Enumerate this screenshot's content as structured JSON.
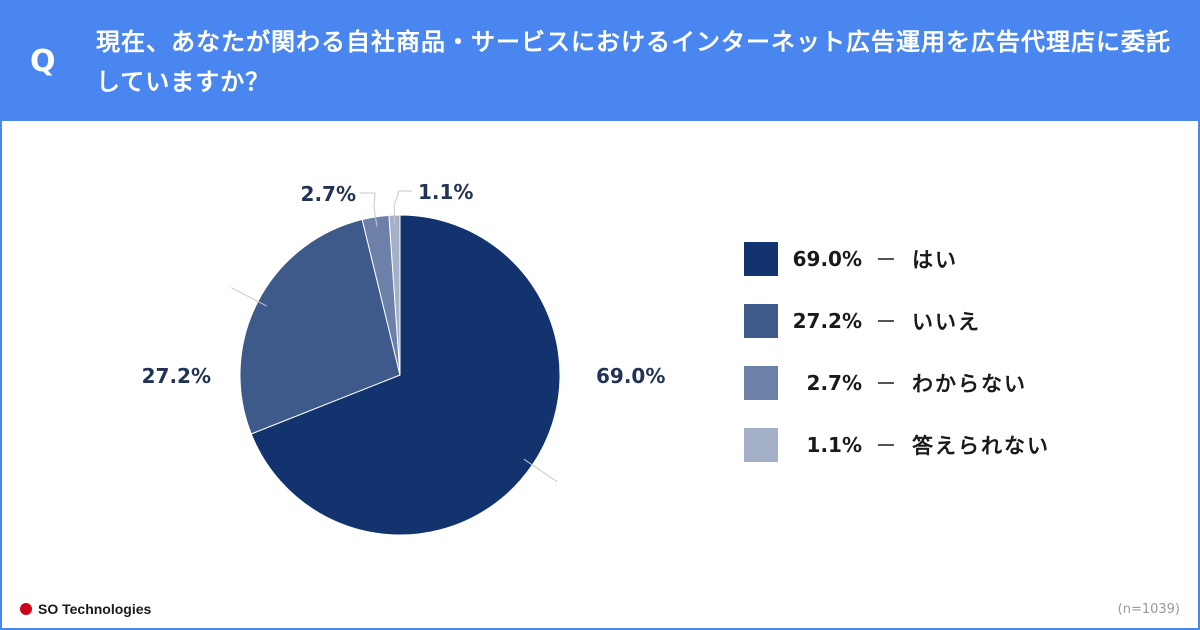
{
  "header": {
    "q_mark": "Q",
    "question": "現在、あなたが関わる自社商品・サービスにおけるインターネット広告運用を広告代理店に委託していますか？"
  },
  "chart_data": {
    "type": "pie",
    "title": "",
    "slices": [
      {
        "label": "はい",
        "value": 69.0,
        "value_label": "69.0%",
        "color": "#12336e"
      },
      {
        "label": "いいえ",
        "value": 27.2,
        "value_label": "27.2%",
        "color": "#3d5a8a"
      },
      {
        "label": "わからない",
        "value": 2.7,
        "value_label": "2.7%",
        "color": "#6c80a8"
      },
      {
        "label": "答えられない",
        "value": 1.1,
        "value_label": "1.1%",
        "color": "#a3b0c8"
      }
    ],
    "legend_position": "right"
  },
  "footer": {
    "brand": "SO Technologies",
    "sample_size": "(n=1039)"
  },
  "colors": {
    "header_bg": "#4a86f0",
    "brand_dot": "#d0021b"
  }
}
